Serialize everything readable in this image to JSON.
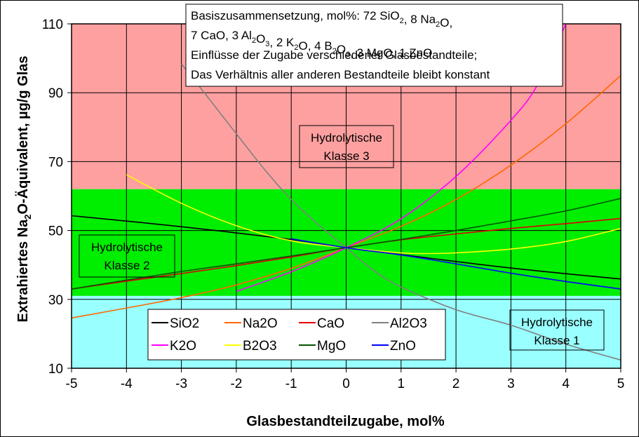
{
  "chart_data": {
    "type": "line",
    "title": "",
    "xlabel": "Glasbestandteilzugabe, mol%",
    "ylabel_parts": [
      "Extrahiertes Na",
      "2",
      "O-Äquivalent, µg/g Glas"
    ],
    "xlim": [
      -5,
      5
    ],
    "ylim": [
      10,
      110
    ],
    "x_ticks": [
      -5,
      -4,
      -3,
      -2,
      -1,
      0,
      1,
      2,
      3,
      4,
      5
    ],
    "y_ticks": [
      10,
      30,
      50,
      70,
      90,
      110
    ],
    "grid": true,
    "bands": [
      {
        "y0": 62,
        "y1": 110,
        "color": "#ffa0a0"
      },
      {
        "y0": 31,
        "y1": 62,
        "color": "#00ee00"
      },
      {
        "y0": 10,
        "y1": 31,
        "color": "#99ffff"
      }
    ],
    "annotations": {
      "composition_lines": [
        [
          {
            "t": "Basiszusammensetzung, mol%: 72 SiO"
          },
          {
            "t": "2",
            "sub": true
          },
          {
            "t": ", 8 Na"
          },
          {
            "t": "2",
            "sub": true
          },
          {
            "t": "O,"
          }
        ],
        [
          {
            "t": "7 CaO, 3 Al"
          },
          {
            "t": "2",
            "sub": true
          },
          {
            "t": "O"
          },
          {
            "t": "3",
            "sub": true
          },
          {
            "t": ", 2 K"
          },
          {
            "t": "2",
            "sub": true
          },
          {
            "t": "O, 4 B"
          },
          {
            "t": "2",
            "sub": true
          },
          {
            "t": "O"
          },
          {
            "t": "3",
            "sub": true
          },
          {
            "t": ", 3 MgO, 1 ZnO"
          }
        ],
        [
          {
            "t": "Einflüsse der Zugabe verschiedener Glasbestandteile;"
          }
        ],
        [
          {
            "t": "Das Verhältnis aller anderen Bestandteile bleibt konstant"
          }
        ]
      ],
      "class3": [
        "Hydrolytische",
        "Klasse 3"
      ],
      "class2": [
        "Hydrolytische",
        "Klasse 2"
      ],
      "class1": [
        "Hydrolytische",
        "Klasse 1"
      ]
    },
    "legend_placement": "bottom-center",
    "series": [
      {
        "name": "SiO2",
        "color": "#000000",
        "points": [
          [
            -5,
            54.3
          ],
          [
            -3,
            51.1
          ],
          [
            -1,
            47.4
          ],
          [
            0,
            45.0
          ],
          [
            1,
            43.0
          ],
          [
            3,
            39.1
          ],
          [
            5,
            35.9
          ]
        ]
      },
      {
        "name": "Na2O",
        "color": "#ff6600",
        "points": [
          [
            -5,
            24.6
          ],
          [
            -4,
            27.5
          ],
          [
            -3,
            30.5
          ],
          [
            -2,
            34.2
          ],
          [
            -1,
            39.0
          ],
          [
            0,
            45.0
          ],
          [
            1,
            51.2
          ],
          [
            2,
            59.0
          ],
          [
            3,
            69.0
          ],
          [
            4,
            81.0
          ],
          [
            5,
            95.0
          ]
        ]
      },
      {
        "name": "CaO",
        "color": "#dd0000",
        "points": [
          [
            -5,
            33.0
          ],
          [
            -4,
            35.3
          ],
          [
            -3,
            37.5
          ],
          [
            -2,
            39.8
          ],
          [
            -1,
            42.3
          ],
          [
            0,
            45.0
          ],
          [
            1,
            47.3
          ],
          [
            2,
            49.0
          ],
          [
            3,
            50.6
          ],
          [
            4,
            52.0
          ],
          [
            5,
            53.5
          ]
        ]
      },
      {
        "name": "Al2O3",
        "color": "#808080",
        "points": [
          [
            -3,
            98.4
          ],
          [
            -2.5,
            88.3
          ],
          [
            -2,
            78.1
          ],
          [
            -1.5,
            68.0
          ],
          [
            -1,
            59.0
          ],
          [
            -0.5,
            51.6
          ],
          [
            0,
            45.0
          ],
          [
            0.5,
            38.4
          ],
          [
            1,
            33.6
          ],
          [
            2,
            27.0
          ],
          [
            3,
            22.5
          ],
          [
            4,
            17.0
          ],
          [
            5,
            12.4
          ]
        ]
      },
      {
        "name": "K2O",
        "color": "#ff00ff",
        "points": [
          [
            -2,
            32.3
          ],
          [
            -1,
            38.0
          ],
          [
            0,
            45.0
          ],
          [
            1,
            53.4
          ],
          [
            2,
            65.7
          ],
          [
            3,
            82.0
          ],
          [
            3.5,
            92.7
          ],
          [
            4,
            110.0
          ]
        ]
      },
      {
        "name": "B2O3",
        "color": "#ffff00",
        "points": [
          [
            -4,
            66.2
          ],
          [
            -3,
            57.9
          ],
          [
            -2,
            51.4
          ],
          [
            -1,
            47.0
          ],
          [
            0,
            45.0
          ],
          [
            1,
            43.5
          ],
          [
            1.5,
            43.3
          ],
          [
            2,
            43.5
          ],
          [
            3,
            44.6
          ],
          [
            4,
            46.8
          ],
          [
            5,
            50.6
          ]
        ]
      },
      {
        "name": "MgO",
        "color": "#005500",
        "points": [
          [
            -5,
            33.0
          ],
          [
            -4,
            35.6
          ],
          [
            -3,
            38.1
          ],
          [
            -2,
            40.3
          ],
          [
            -1,
            42.6
          ],
          [
            0,
            45.0
          ],
          [
            1,
            47.4
          ],
          [
            2,
            50.0
          ],
          [
            3,
            52.8
          ],
          [
            4,
            55.7
          ],
          [
            5,
            59.3
          ]
        ]
      },
      {
        "name": "ZnO",
        "color": "#0000ff",
        "points": [
          [
            -1,
            47.6
          ],
          [
            0,
            45.0
          ],
          [
            1,
            42.9
          ],
          [
            2,
            40.3
          ],
          [
            3,
            37.6
          ],
          [
            4,
            35.2
          ],
          [
            5,
            33.0
          ]
        ]
      }
    ]
  }
}
